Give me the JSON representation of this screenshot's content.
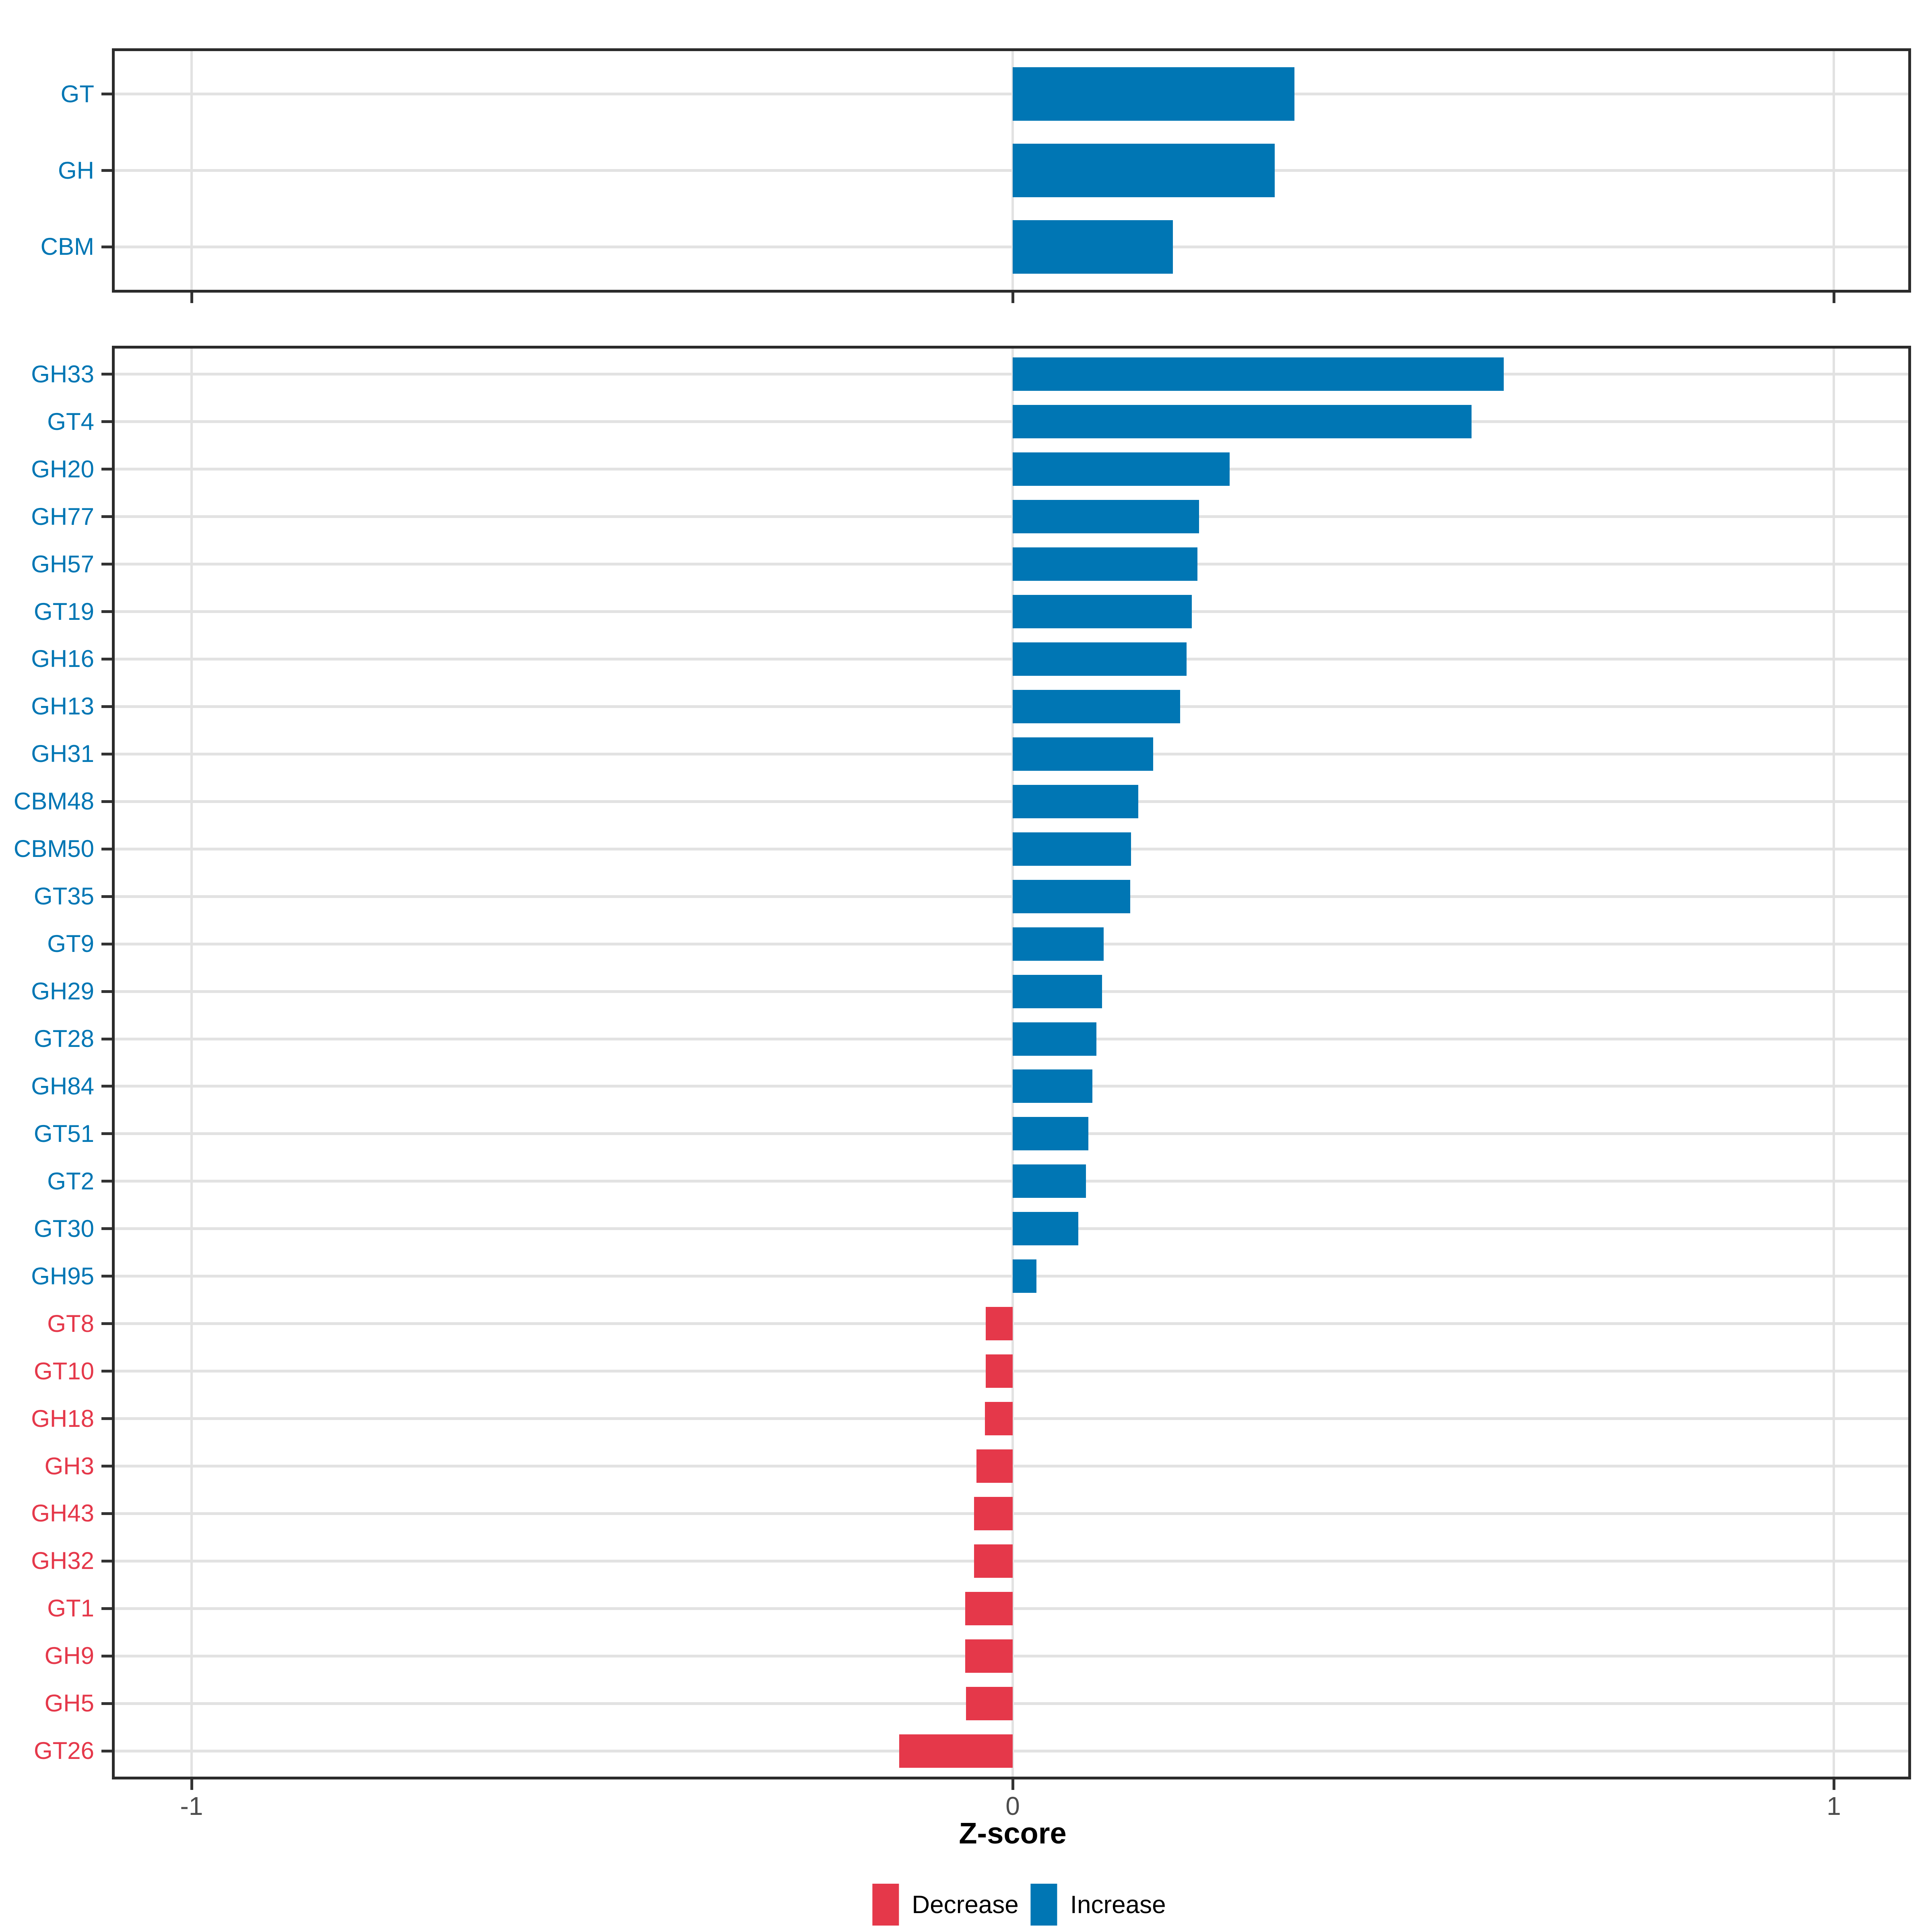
{
  "axis": {
    "title": "Z-score",
    "tick_labels": [
      "-1",
      "0",
      "1"
    ]
  },
  "legend": {
    "items": [
      {
        "label": "Decrease",
        "color": "#e5384a"
      },
      {
        "label": "Increase",
        "color": "#0076b4"
      }
    ]
  },
  "colors": {
    "increase": "#0076b4",
    "decrease": "#e5384a",
    "grid": "#e2e2e2",
    "panel_border": "#2b2b2b",
    "tick_text": "#4d4d4d"
  },
  "chart_data": {
    "type": "bar",
    "orientation": "horizontal",
    "xlabel": "Z-score",
    "xlim": [
      -1.1,
      1.1
    ],
    "x_ticks": [
      -1,
      0,
      1
    ],
    "grid": true,
    "legend_position": "bottom",
    "series_colors": {
      "Increase": "#0076b4",
      "Decrease": "#e5384a"
    },
    "panels": [
      {
        "name": "top",
        "categories": [
          "GT",
          "GH",
          "CBM"
        ],
        "values": [
          0.343,
          0.319,
          0.195
        ],
        "groups": [
          "Increase",
          "Increase",
          "Increase"
        ]
      },
      {
        "name": "bottom",
        "categories": [
          "GH33",
          "GT4",
          "GH20",
          "GH77",
          "GH57",
          "GT19",
          "GH16",
          "GH13",
          "GH31",
          "CBM48",
          "CBM50",
          "GT35",
          "GT9",
          "GH29",
          "GT28",
          "GH84",
          "GT51",
          "GT2",
          "GT30",
          "GH95",
          "GT8",
          "GT10",
          "GH18",
          "GH3",
          "GH43",
          "GH32",
          "GT1",
          "GH9",
          "GH5",
          "GT26"
        ],
        "values": [
          0.598,
          0.559,
          0.264,
          0.227,
          0.225,
          0.218,
          0.212,
          0.204,
          0.171,
          0.153,
          0.144,
          0.143,
          0.111,
          0.109,
          0.102,
          0.097,
          0.092,
          0.089,
          0.08,
          0.029,
          -0.033,
          -0.033,
          -0.034,
          -0.044,
          -0.047,
          -0.047,
          -0.058,
          -0.058,
          -0.057,
          -0.138
        ],
        "groups": [
          "Increase",
          "Increase",
          "Increase",
          "Increase",
          "Increase",
          "Increase",
          "Increase",
          "Increase",
          "Increase",
          "Increase",
          "Increase",
          "Increase",
          "Increase",
          "Increase",
          "Increase",
          "Increase",
          "Increase",
          "Increase",
          "Increase",
          "Increase",
          "Decrease",
          "Decrease",
          "Decrease",
          "Decrease",
          "Decrease",
          "Decrease",
          "Decrease",
          "Decrease",
          "Decrease",
          "Decrease"
        ]
      }
    ]
  }
}
